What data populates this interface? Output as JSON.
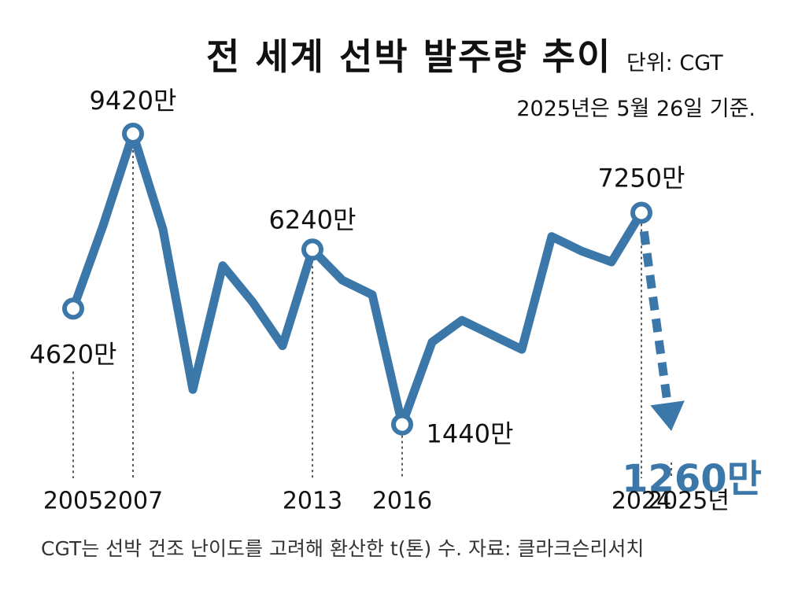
{
  "title": "전 세계 선박 발주량 추이",
  "unit": "단위: CGT",
  "basis_note": "2025년은 5월 26일 기준.",
  "footnote": "CGT는 선박 건조 난이도를 고려해 환산한 t(톤) 수. 자료: 클라크슨리서치",
  "colors": {
    "line": "#3b78a9",
    "text": "#111111",
    "background": "#ffffff"
  },
  "chart_data": {
    "type": "line",
    "title": "전 세계 선박 발주량 추이",
    "unit": "CGT",
    "x_tick_labels": [
      "2005",
      "2007",
      "2013",
      "2016",
      "2024",
      "2025년"
    ],
    "x": [
      2005,
      2006,
      2007,
      2008,
      2009,
      2010,
      2011,
      2012,
      2013,
      2014,
      2015,
      2016,
      2017,
      2018,
      2019,
      2020,
      2021,
      2022,
      2023,
      2024
    ],
    "series": [
      {
        "values": [
          4620,
          6900,
          9420,
          6800,
          2400,
          5800,
          4800,
          3600,
          6240,
          5400,
          5000,
          1440,
          3700,
          4300,
          3900,
          3500,
          6600,
          6200,
          5900,
          7250
        ]
      }
    ],
    "projection": {
      "from_x": 2024,
      "from_value": 7250,
      "to_x": 2025,
      "to_value": 1260,
      "style": "dashed-arrow"
    },
    "annotations": [
      {
        "x": 2005,
        "label": "4620만"
      },
      {
        "x": 2007,
        "label": "9420만"
      },
      {
        "x": 2013,
        "label": "6240만"
      },
      {
        "x": 2016,
        "label": "1440만"
      },
      {
        "x": 2024,
        "label": "7250만"
      },
      {
        "x": 2025,
        "label": "1260만"
      }
    ],
    "grid": false,
    "legend": "none"
  }
}
